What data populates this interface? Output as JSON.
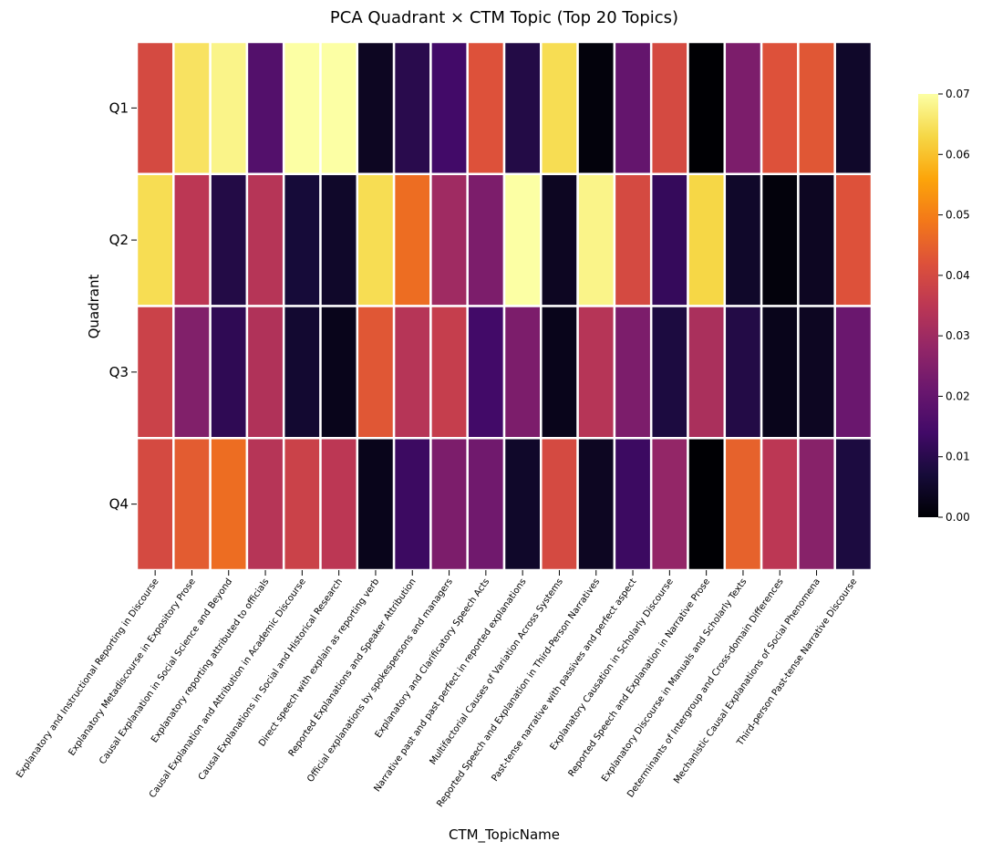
{
  "chart_data": {
    "type": "heatmap",
    "title": "PCA Quadrant × CTM Topic (Top 20 Topics)",
    "xlabel": "CTM_TopicName",
    "ylabel": "Quadrant",
    "colormap": "inferno",
    "gridline_color": "#ffffff",
    "rows": [
      "Q1",
      "Q2",
      "Q3",
      "Q4"
    ],
    "columns": [
      "Explanatory and Instructional Reporting in Discourse",
      "Explanatory Metadiscourse in Expository Prose",
      "Causal Explanation in Social Science and Beyond",
      "Explanatory reporting attributed to officials",
      "Causal Explanation and Attribution in Academic Discourse",
      "Causal Explanations in Social and Historical Research",
      "Direct speech with explain as reporting verb",
      "Reported Explanations and Speaker Attribution",
      "Official explanations by spokespersons and managers",
      "Explanatory and Clarificatory Speech Acts",
      "Narrative past and past perfect in reported explanations",
      "Multifactorial Causes of Variation Across Systems",
      "Reported Speech and Explanation in Third-Person Narratives",
      "Past-tense narrative with passives and perfect aspect",
      "Explanatory Causation in Scholarly Discourse",
      "Reported Speech and Explanation in Narrative Prose",
      "Explanatory Discourse in Manuals and Scholarly Texts",
      "Determinants of Intergroup and Cross-domain Differences",
      "Mechanistic Causal Explanations of Social Phenomena",
      "Third-person Past-tense Narrative Discourse"
    ],
    "values": [
      [
        0.04,
        0.065,
        0.068,
        0.017,
        0.07,
        0.072,
        0.004,
        0.01,
        0.014,
        0.042,
        0.009,
        0.064,
        0.001,
        0.02,
        0.04,
        0.0,
        0.024,
        0.042,
        0.043,
        0.005
      ],
      [
        0.064,
        0.035,
        0.009,
        0.034,
        0.007,
        0.005,
        0.064,
        0.047,
        0.03,
        0.024,
        0.073,
        0.004,
        0.068,
        0.04,
        0.012,
        0.063,
        0.005,
        0.001,
        0.004,
        0.042
      ],
      [
        0.038,
        0.025,
        0.011,
        0.033,
        0.006,
        0.003,
        0.043,
        0.034,
        0.037,
        0.014,
        0.024,
        0.003,
        0.034,
        0.024,
        0.008,
        0.032,
        0.009,
        0.003,
        0.004,
        0.021
      ],
      [
        0.04,
        0.044,
        0.047,
        0.034,
        0.038,
        0.035,
        0.003,
        0.013,
        0.024,
        0.022,
        0.005,
        0.04,
        0.004,
        0.013,
        0.028,
        0.0,
        0.045,
        0.035,
        0.026,
        0.008
      ]
    ],
    "vmin": 0.0,
    "vmax": 0.07,
    "colorbar_ticks": [
      "0.00",
      "0.01",
      "0.02",
      "0.03",
      "0.04",
      "0.05",
      "0.06",
      "0.07"
    ],
    "grid": false,
    "legend": "right"
  }
}
